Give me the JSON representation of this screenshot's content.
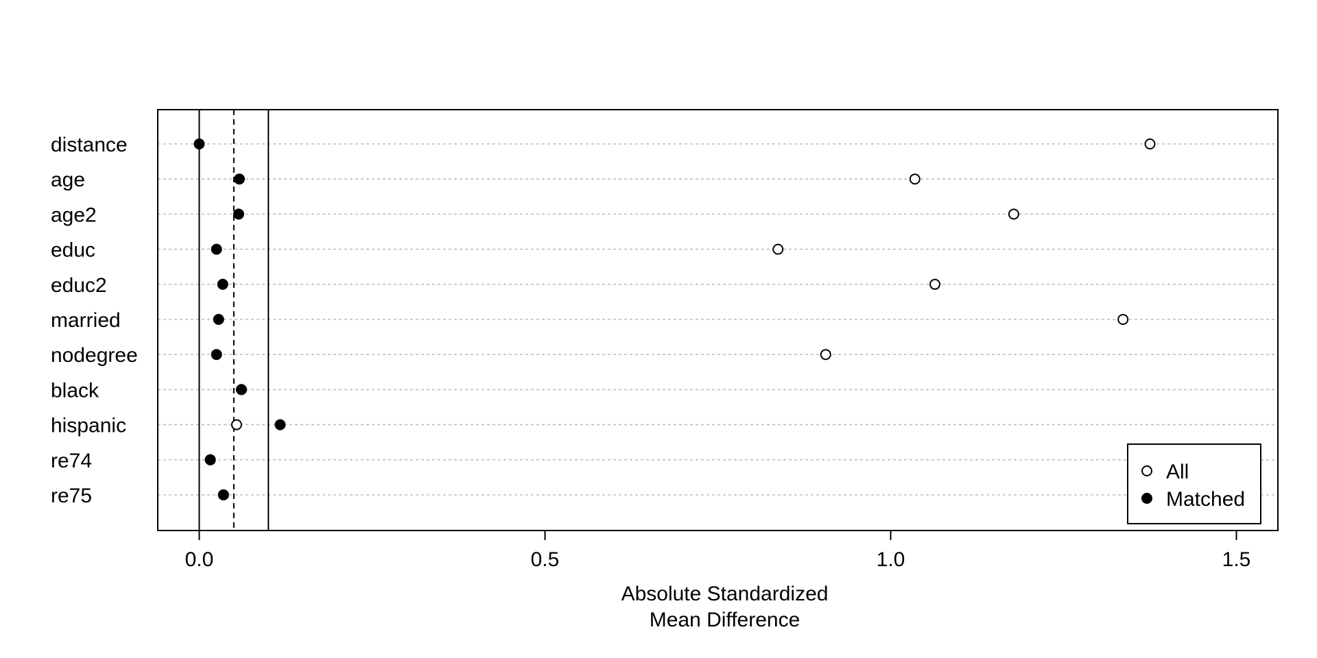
{
  "chart_data": {
    "type": "scatter",
    "xlabel_lines": [
      "Absolute Standardized",
      "Mean Difference"
    ],
    "xlim": [
      -0.06,
      1.56
    ],
    "x_ticks": [
      {
        "value": 0.0,
        "label": "0.0"
      },
      {
        "value": 0.5,
        "label": "0.5"
      },
      {
        "value": 1.0,
        "label": "1.0"
      },
      {
        "value": 1.5,
        "label": "1.5"
      }
    ],
    "reference_lines": {
      "solid": [
        0.0,
        0.1
      ],
      "dashed": [
        0.05
      ]
    },
    "grid": "horizontal dotted",
    "categories": [
      "distance",
      "age",
      "age2",
      "educ",
      "educ2",
      "married",
      "nodegree",
      "black",
      "hispanic",
      "re74",
      "re75"
    ],
    "series": [
      {
        "name": "All",
        "marker": "open-circle",
        "values": [
          1.375,
          1.035,
          1.178,
          0.837,
          1.064,
          1.336,
          0.906,
          0.061,
          0.054,
          0.016,
          0.035
        ]
      },
      {
        "name": "Matched",
        "marker": "filled-circle",
        "values": [
          0.0,
          0.058,
          0.057,
          0.025,
          0.034,
          0.028,
          0.025,
          0.061,
          0.117,
          0.016,
          0.035
        ]
      }
    ],
    "legend": {
      "placement": "bottom-right",
      "entries": [
        "All",
        "Matched"
      ]
    }
  }
}
